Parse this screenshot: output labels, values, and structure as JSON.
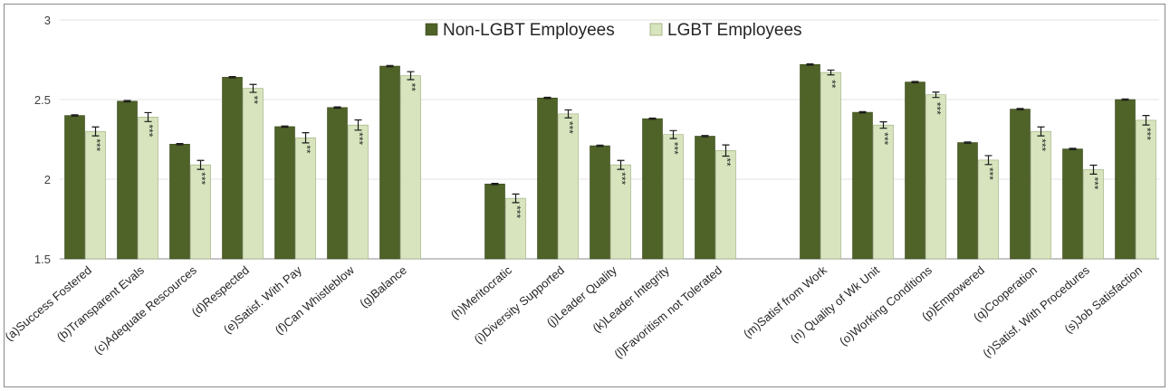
{
  "chart_data": {
    "type": "bar",
    "title": "",
    "xlabel": "",
    "ylabel": "",
    "ylim": [
      1.5,
      3
    ],
    "yticks": [
      "1.5",
      "2",
      "2.5",
      "3"
    ],
    "grid": true,
    "legend_position": "top-center",
    "groups": [
      {
        "start": 0,
        "count": 7
      },
      {
        "start": 7,
        "count": 5
      },
      {
        "start": 12,
        "count": 7
      }
    ],
    "categories": [
      "(a)Success Fostered",
      "(b)Transparent Evals",
      "(c)Adequate Rescources",
      "(d)Respected",
      "(e)Satisf. With Pay",
      "(f)Can Whistleblow",
      "(g)Balance",
      "(h)Meritocratic",
      "(i)Diversity Supported",
      "(j)Leader Quality",
      "(k)Leader Integrity",
      "(l)Favoritism not Tolerated",
      "(m)Satisf from Work",
      "(n) Quality of Wk Unit",
      "(o)Working Conditions",
      "(p)Empowered",
      "(q)Cooperation",
      "(r)Satisf. With Procedures",
      "(s)Job Satisfaction"
    ],
    "series": [
      {
        "name": "Non-LGBT Employees",
        "color": "#4f6228",
        "values": [
          2.4,
          2.49,
          2.22,
          2.64,
          2.33,
          2.45,
          2.71,
          1.97,
          2.51,
          2.21,
          2.38,
          2.27,
          2.72,
          2.42,
          2.61,
          2.23,
          2.44,
          2.19,
          2.5
        ],
        "errors": [
          0.004,
          0.004,
          0.004,
          0.004,
          0.004,
          0.004,
          0.004,
          0.004,
          0.004,
          0.004,
          0.004,
          0.004,
          0.004,
          0.004,
          0.004,
          0.004,
          0.004,
          0.004,
          0.004
        ]
      },
      {
        "name": "LGBT Employees",
        "color": "#d7e4bd",
        "values": [
          2.3,
          2.39,
          2.09,
          2.57,
          2.26,
          2.34,
          2.65,
          1.88,
          2.41,
          2.09,
          2.28,
          2.18,
          2.67,
          2.34,
          2.53,
          2.12,
          2.3,
          2.06,
          2.37
        ],
        "errors": [
          0.028,
          0.028,
          0.028,
          0.025,
          0.032,
          0.032,
          0.025,
          0.027,
          0.025,
          0.028,
          0.025,
          0.035,
          0.015,
          0.02,
          0.017,
          0.028,
          0.028,
          0.028,
          0.03
        ],
        "significance": [
          "***",
          "***",
          "***",
          "**",
          "**",
          "***",
          "**",
          "***",
          "***",
          "***",
          "***",
          "**",
          "**",
          "***",
          "***",
          "***",
          "***",
          "***",
          "***"
        ]
      }
    ]
  }
}
